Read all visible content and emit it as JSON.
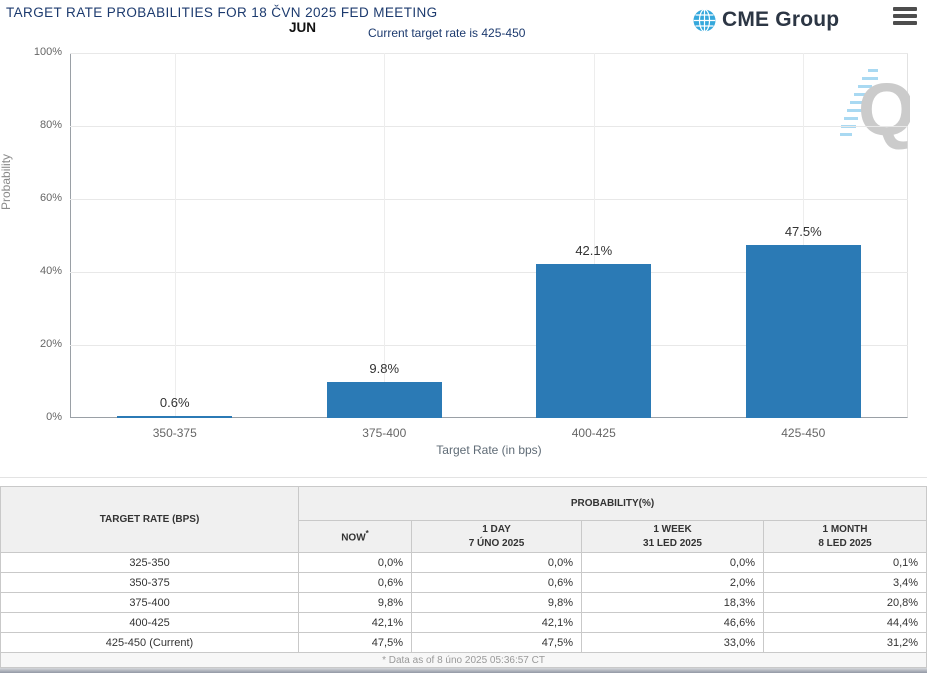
{
  "header": {
    "title": "TARGET RATE PROBABILITIES FOR 18 ČVN 2025 FED MEETING",
    "month_label": "JUN",
    "subtitle": "Current target rate is 425-450",
    "brand": "CME Group",
    "menu_icon": "hamburger-icon",
    "logo_icon": "globe-icon"
  },
  "chart_data": {
    "type": "bar",
    "categories": [
      "350-375",
      "375-400",
      "400-425",
      "425-450"
    ],
    "values": [
      0.6,
      9.8,
      42.1,
      47.5
    ],
    "bar_labels": [
      "0.6%",
      "9.8%",
      "42.1%",
      "47.5%"
    ],
    "xlabel": "Target Rate (in bps)",
    "ylabel": "Probability",
    "ylim": [
      0,
      100
    ],
    "yticks_pct": [
      0,
      20,
      40,
      60,
      80,
      100
    ],
    "ytick_labels": [
      "0%",
      "20%",
      "40%",
      "60%",
      "80%",
      "100%"
    ],
    "grid": true,
    "legend_position": "none",
    "bar_color": "#2b7ab5"
  },
  "watermark": {
    "letter": "Q"
  },
  "table": {
    "col_header_main": "TARGET RATE (BPS)",
    "col_header_group": "PROBABILITY(%)",
    "columns": [
      {
        "label": "NOW",
        "sup": "*",
        "sub": ""
      },
      {
        "label": "1 DAY",
        "sup": "",
        "sub": "7 ÚNO 2025"
      },
      {
        "label": "1 WEEK",
        "sup": "",
        "sub": "31 LED 2025"
      },
      {
        "label": "1 MONTH",
        "sup": "",
        "sub": "8 LED 2025"
      }
    ],
    "rows": [
      {
        "rate": "325-350",
        "now": "0,0%",
        "day": "0,0%",
        "week": "0,0%",
        "month": "0,1%"
      },
      {
        "rate": "350-375",
        "now": "0,6%",
        "day": "0,6%",
        "week": "2,0%",
        "month": "3,4%"
      },
      {
        "rate": "375-400",
        "now": "9,8%",
        "day": "9,8%",
        "week": "18,3%",
        "month": "20,8%"
      },
      {
        "rate": "400-425",
        "now": "42,1%",
        "day": "42,1%",
        "week": "46,6%",
        "month": "44,4%"
      },
      {
        "rate": "425-450 (Current)",
        "now": "47,5%",
        "day": "47,5%",
        "week": "33,0%",
        "month": "31,2%"
      }
    ],
    "footnote": "* Data as of 8 úno 2025 05:36:57 CT"
  },
  "colors": {
    "accent_navy": "#1c3a6e",
    "bar_blue": "#2b7ab5",
    "now_column_bg": "#f9f9d8",
    "logo_globe_blue": "#35a8dc",
    "watermark_gray": "#cbcbcb",
    "watermark_dash_blue": "#a9d9f2"
  }
}
